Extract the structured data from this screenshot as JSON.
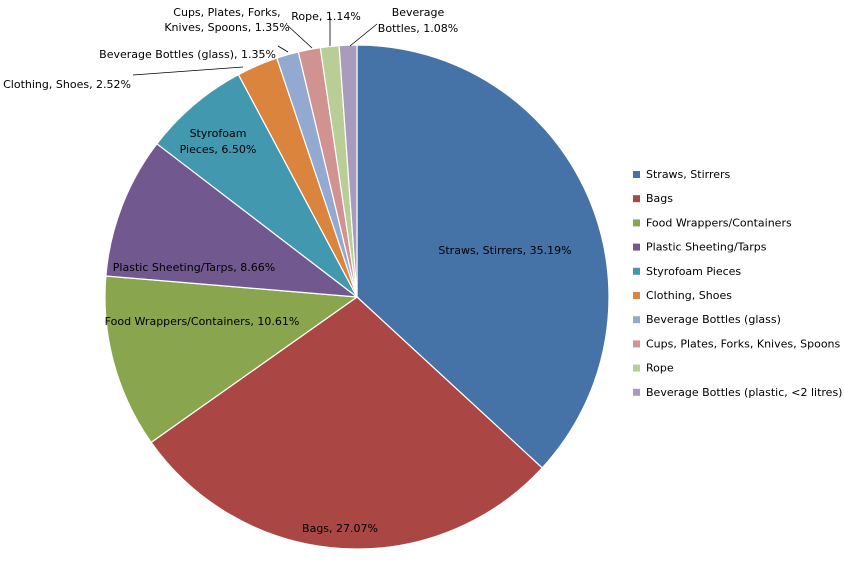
{
  "chart_data": {
    "type": "pie",
    "title": "",
    "slices": [
      {
        "name": "Straws, Stirrers",
        "value": 35.19,
        "label": "Straws, Stirrers, 35.19%",
        "color": "#4572A7"
      },
      {
        "name": "Bags",
        "value": 27.07,
        "label": "Bags, 27.07%",
        "color": "#AA4643"
      },
      {
        "name": "Food Wrappers/Containers",
        "value": 10.61,
        "label": "Food Wrappers/Containers, 10.61%",
        "color": "#89A54E"
      },
      {
        "name": "Plastic Sheeting/Tarps",
        "value": 8.66,
        "label": "Plastic Sheeting/Tarps, 8.66%",
        "color": "#71588F"
      },
      {
        "name": "Styrofoam Pieces",
        "value": 6.5,
        "label": "Styrofoam Pieces, 6.50%",
        "color": "#4198AF"
      },
      {
        "name": "Clothing, Shoes",
        "value": 2.52,
        "label": "Clothing, Shoes, 2.52%",
        "color": "#DB843D"
      },
      {
        "name": "Beverage Bottles (glass)",
        "value": 1.35,
        "label": "Beverage Bottles (glass), 1.35%",
        "color": "#93A9CF"
      },
      {
        "name": "Cups, Plates, Forks, Knives, Spoons",
        "value": 1.35,
        "label": "Cups, Plates, Forks, Knives, Spoons, 1.35%",
        "color": "#D19392"
      },
      {
        "name": "Rope",
        "value": 1.14,
        "label": "Rope, 1.14%",
        "color": "#B9CD96"
      },
      {
        "name": "Beverage Bottles (plastic, <2 litres)",
        "value": 1.08,
        "label": "Beverage Bottles, 1.08%",
        "color": "#A99BBD"
      }
    ],
    "legend_position": "right",
    "start_angle": "12 o'clock, clockwise"
  }
}
